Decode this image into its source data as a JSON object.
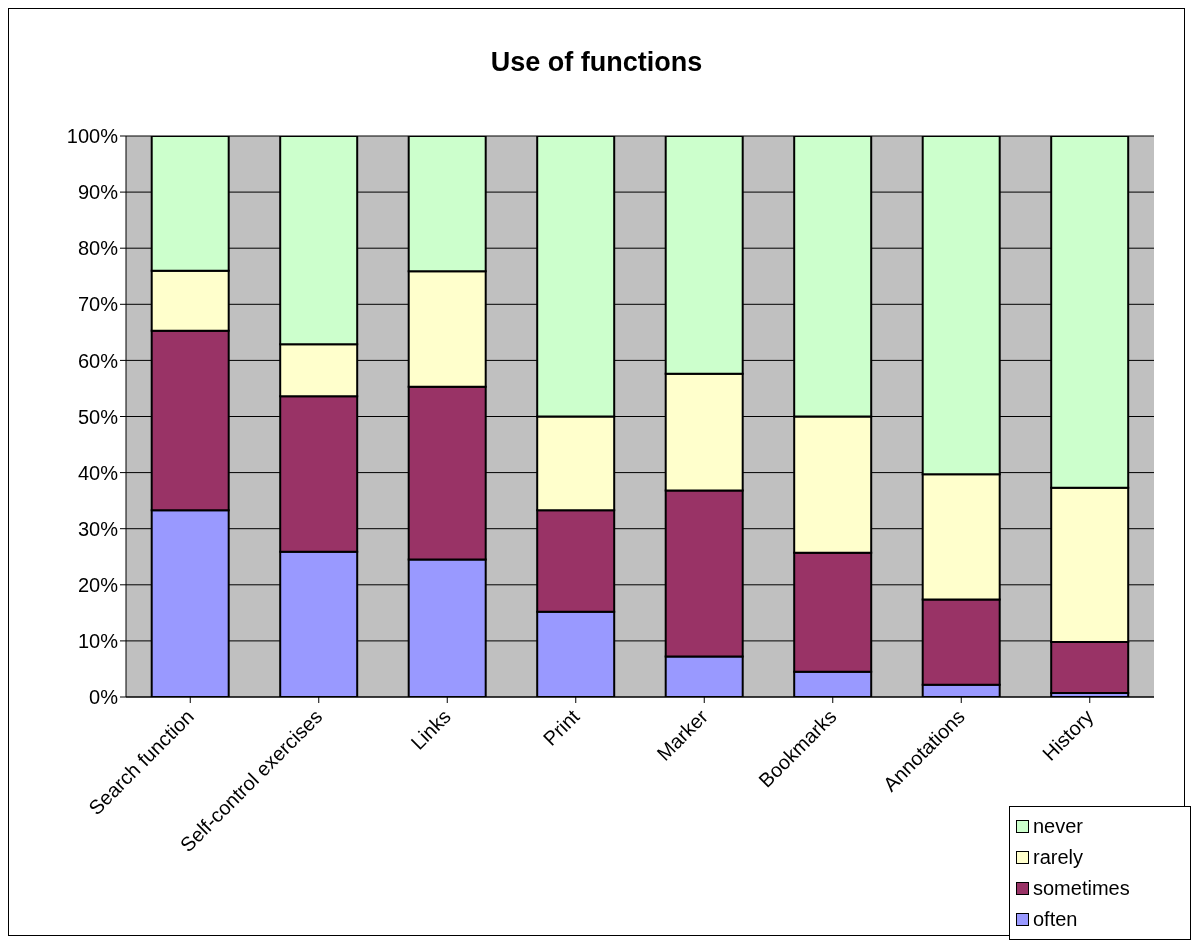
{
  "chart_data": {
    "type": "bar",
    "title": "Use of functions",
    "stacked": true,
    "categories": [
      "Search function",
      "Self-control exercises",
      "Links",
      "Print",
      "Marker",
      "Bookmarks",
      "Annotations",
      "History"
    ],
    "series": [
      {
        "name": "often",
        "color": "#9999ff",
        "values": [
          33.3,
          25.9,
          24.5,
          15.2,
          7.2,
          4.5,
          2.2,
          0.7
        ]
      },
      {
        "name": "sometimes",
        "color": "#993366",
        "values": [
          32.0,
          27.7,
          30.8,
          18.1,
          29.6,
          21.2,
          15.2,
          9.1
        ]
      },
      {
        "name": "rarely",
        "color": "#ffffcc",
        "values": [
          10.7,
          9.3,
          20.6,
          16.7,
          20.8,
          24.3,
          22.3,
          27.5
        ]
      },
      {
        "name": "never",
        "color": "#ccffcc",
        "values": [
          24.0,
          37.1,
          24.1,
          50.0,
          42.4,
          50.0,
          60.3,
          62.7
        ]
      }
    ],
    "ylim": [
      0,
      100
    ],
    "yticks": [
      {
        "value": 0,
        "label": "0%"
      },
      {
        "value": 10,
        "label": "10%"
      },
      {
        "value": 20,
        "label": "20%"
      },
      {
        "value": 30,
        "label": "30%"
      },
      {
        "value": 40,
        "label": "40%"
      },
      {
        "value": 50,
        "label": "50%"
      },
      {
        "value": 60,
        "label": "60%"
      },
      {
        "value": 70,
        "label": "70%"
      },
      {
        "value": 80,
        "label": "80%"
      },
      {
        "value": 90,
        "label": "90%"
      },
      {
        "value": 100,
        "label": "100%"
      }
    ],
    "grid": "y",
    "legend": "bottom right"
  }
}
